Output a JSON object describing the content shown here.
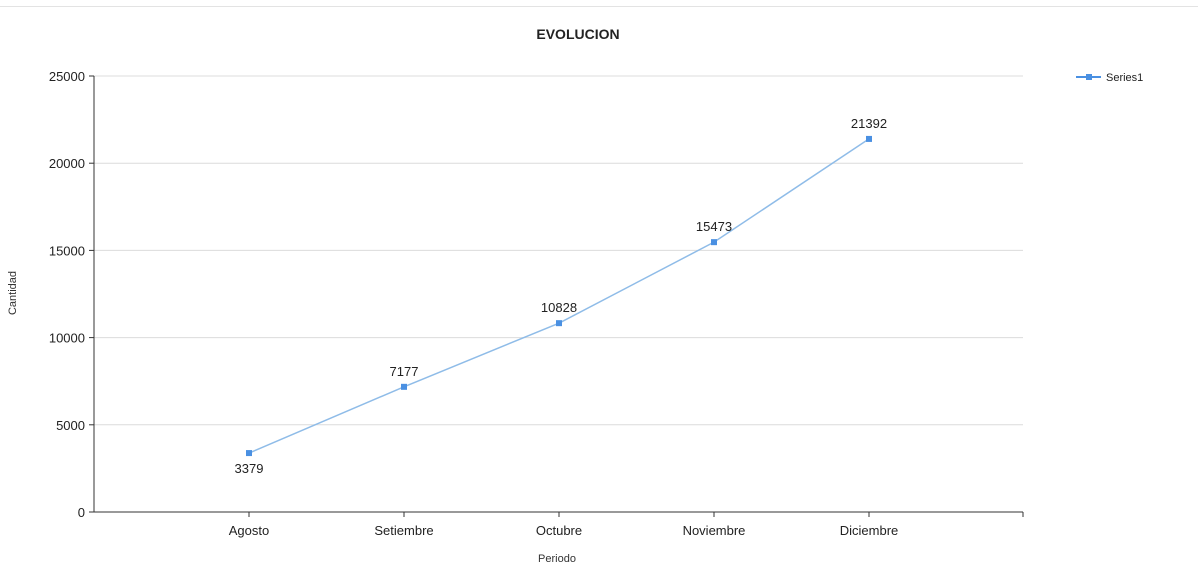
{
  "chart_data": {
    "type": "line",
    "title": "EVOLUCION",
    "xlabel": "Periodo",
    "ylabel": "Cantidad",
    "categories": [
      "Agosto",
      "Setiembre",
      "Octubre",
      "Noviembre",
      "Diciembre"
    ],
    "series": [
      {
        "name": "Series1",
        "values": [
          3379,
          7177,
          10828,
          15473,
          21392
        ],
        "color": "#4a90e2",
        "line_color": "#8fbce8"
      }
    ],
    "ylim": [
      0,
      25000
    ],
    "yticks": [
      0,
      5000,
      10000,
      15000,
      20000,
      25000
    ],
    "grid": true,
    "legend": "top-right"
  }
}
